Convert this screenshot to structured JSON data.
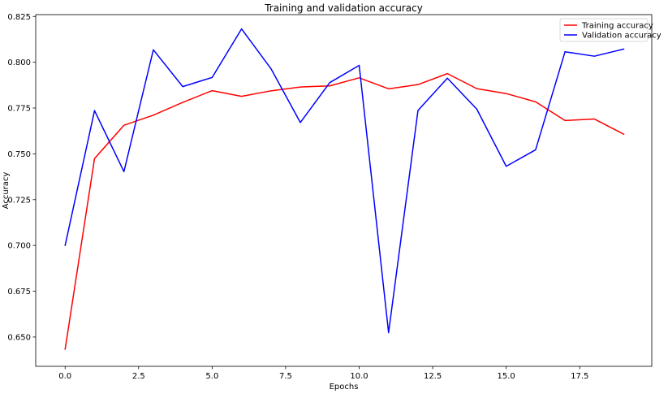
{
  "chart_data": {
    "type": "line",
    "title": "Training and validation accuracy",
    "xlabel": "Epochs",
    "ylabel": "Accuracy",
    "xlim": [
      -1.0,
      19.95
    ],
    "ylim": [
      0.634,
      0.826
    ],
    "x_ticks": [
      0.0,
      2.5,
      5.0,
      7.5,
      10.0,
      12.5,
      15.0,
      17.5
    ],
    "x_tick_labels": [
      "0.0",
      "2.5",
      "5.0",
      "7.5",
      "10.0",
      "12.5",
      "15.0",
      "17.5"
    ],
    "y_ticks": [
      0.65,
      0.675,
      0.7,
      0.725,
      0.75,
      0.775,
      0.8,
      0.825
    ],
    "y_tick_labels": [
      "0.650",
      "0.675",
      "0.700",
      "0.725",
      "0.750",
      "0.775",
      "0.800",
      "0.825"
    ],
    "grid": false,
    "legend_position": "top-right",
    "x": [
      0,
      1,
      2,
      3,
      4,
      5,
      6,
      7,
      8,
      9,
      10,
      11,
      12,
      13,
      14,
      15,
      16,
      17,
      18,
      19
    ],
    "series": [
      {
        "name": "Training accuracy",
        "color": "#ff0000",
        "values": [
          0.6433,
          0.7474,
          0.7656,
          0.7711,
          0.7781,
          0.7845,
          0.7814,
          0.7844,
          0.7865,
          0.7871,
          0.7915,
          0.7855,
          0.7878,
          0.7938,
          0.7856,
          0.7829,
          0.7784,
          0.7682,
          0.769,
          0.7607
        ]
      },
      {
        "name": "Validation accuracy",
        "color": "#0000ff",
        "values": [
          0.7,
          0.7736,
          0.7403,
          0.8068,
          0.7867,
          0.7917,
          0.8182,
          0.7965,
          0.7671,
          0.7889,
          0.7983,
          0.6524,
          0.7737,
          0.7913,
          0.7744,
          0.7432,
          0.7522,
          0.8057,
          0.8033,
          0.8072
        ]
      }
    ]
  }
}
